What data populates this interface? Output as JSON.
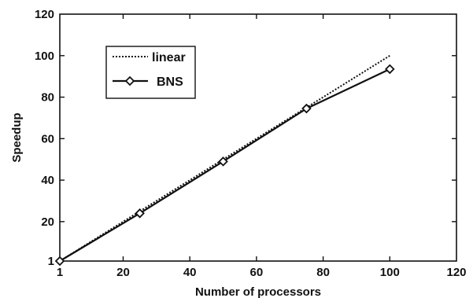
{
  "chart_data": {
    "type": "line",
    "title": "",
    "xlabel": "Number of processors",
    "ylabel": "Speedup",
    "xlim": [
      1,
      120
    ],
    "ylim": [
      1,
      120
    ],
    "x_ticks": [
      1,
      20,
      40,
      60,
      80,
      100,
      120
    ],
    "y_ticks": [
      1,
      20,
      40,
      60,
      80,
      100,
      120
    ],
    "x_tick_labels": [
      "1",
      "20",
      "40",
      "60",
      "80",
      "100",
      "120"
    ],
    "y_tick_labels": [
      "1",
      "20",
      "40",
      "60",
      "80",
      "100",
      "120"
    ],
    "grid": false,
    "legend_position": "top-left",
    "series": [
      {
        "name": "linear",
        "style": "dotted",
        "marker": "none",
        "x": [
          1,
          100
        ],
        "y": [
          1,
          100
        ]
      },
      {
        "name": "BNS",
        "style": "solid",
        "marker": "diamond",
        "x": [
          1,
          25,
          50,
          75,
          100
        ],
        "y": [
          1,
          24,
          49,
          74.5,
          93.5
        ]
      }
    ]
  }
}
